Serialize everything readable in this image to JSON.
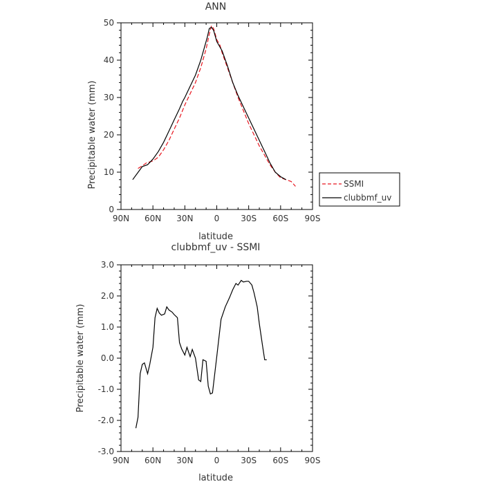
{
  "chart_data": [
    {
      "type": "line",
      "title": "ANN",
      "xlabel": "latitude",
      "ylabel": "Precipitable water (mm)",
      "xlim": [
        90,
        -90
      ],
      "ylim": [
        0,
        50
      ],
      "xticks": [
        90,
        60,
        30,
        0,
        -30,
        -60,
        -90
      ],
      "xtick_labels": [
        "90N",
        "60N",
        "30N",
        "0",
        "30S",
        "60S",
        "90S"
      ],
      "yticks": [
        0,
        10,
        20,
        30,
        40,
        50
      ],
      "ytick_labels": [
        "0",
        "10",
        "20",
        "30",
        "40",
        "50"
      ],
      "legend": {
        "placement": "right-outside",
        "entries": [
          "SSMI",
          "clubbmf_uv"
        ]
      },
      "series": [
        {
          "name": "SSMI",
          "color": "#e8141d",
          "dash": "dashed",
          "points": [
            [
              74,
              11
            ],
            [
              70,
              11.7
            ],
            [
              66,
              12.5
            ],
            [
              60,
              13
            ],
            [
              55,
              14
            ],
            [
              50,
              16
            ],
            [
              45,
              18.5
            ],
            [
              40,
              21.5
            ],
            [
              35,
              24.5
            ],
            [
              30,
              28
            ],
            [
              25,
              31
            ],
            [
              20,
              34
            ],
            [
              15,
              38
            ],
            [
              10,
              43
            ],
            [
              7,
              47
            ],
            [
              5,
              49.2
            ],
            [
              3,
              48.5
            ],
            [
              0,
              45.5
            ],
            [
              -3,
              44
            ],
            [
              -5,
              42
            ],
            [
              -10,
              38
            ],
            [
              -15,
              34
            ],
            [
              -20,
              30
            ],
            [
              -25,
              26.5
            ],
            [
              -30,
              23
            ],
            [
              -35,
              20
            ],
            [
              -40,
              17
            ],
            [
              -45,
              14.5
            ],
            [
              -50,
              12
            ],
            [
              -55,
              10
            ],
            [
              -60,
              8.5
            ],
            [
              -65,
              8
            ],
            [
              -70,
              7.5
            ],
            [
              -74,
              6.2
            ]
          ]
        },
        {
          "name": "clubbmf_uv",
          "color": "#000000",
          "dash": "solid",
          "points": [
            [
              79,
              8
            ],
            [
              70,
              11.5
            ],
            [
              65,
              12
            ],
            [
              60,
              13.5
            ],
            [
              55,
              15.5
            ],
            [
              50,
              18
            ],
            [
              45,
              21
            ],
            [
              40,
              24
            ],
            [
              35,
              27
            ],
            [
              32,
              29
            ],
            [
              30,
              30
            ],
            [
              25,
              33
            ],
            [
              20,
              36
            ],
            [
              15,
              40
            ],
            [
              12,
              43
            ],
            [
              9,
              46
            ],
            [
              7,
              48.5
            ],
            [
              5,
              48.8
            ],
            [
              3,
              48
            ],
            [
              0,
              45
            ],
            [
              -5,
              42.5
            ],
            [
              -10,
              38.5
            ],
            [
              -15,
              34
            ],
            [
              -20,
              30.5
            ],
            [
              -25,
              27.5
            ],
            [
              -30,
              24.5
            ],
            [
              -35,
              21.5
            ],
            [
              -40,
              18.5
            ],
            [
              -45,
              15.5
            ],
            [
              -50,
              12.5
            ],
            [
              -55,
              10
            ],
            [
              -60,
              8.8
            ],
            [
              -65,
              8
            ]
          ]
        }
      ]
    },
    {
      "type": "line",
      "title": "clubbmf_uv - SSMI",
      "xlabel": "latitude",
      "ylabel": "Precipitable water (mm)",
      "xlim": [
        90,
        -90
      ],
      "ylim": [
        -3,
        3
      ],
      "xticks": [
        90,
        60,
        30,
        0,
        -30,
        -60,
        -90
      ],
      "xtick_labels": [
        "90N",
        "60N",
        "30N",
        "0",
        "30S",
        "60S",
        "90S"
      ],
      "yticks": [
        -3,
        -2,
        -1,
        0,
        1,
        2,
        3
      ],
      "ytick_labels": [
        "-3.0",
        "-2.0",
        "-1.0",
        "0.0",
        "1.0",
        "2.0",
        "3.0"
      ],
      "series": [
        {
          "color": "#000000",
          "dash": "solid",
          "points": [
            [
              76,
              -2.25
            ],
            [
              74,
              -1.9
            ],
            [
              72,
              -0.5
            ],
            [
              70,
              -0.2
            ],
            [
              68,
              -0.15
            ],
            [
              65,
              -0.5
            ],
            [
              63,
              -0.2
            ],
            [
              60,
              0.35
            ],
            [
              58,
              1.3
            ],
            [
              56,
              1.6
            ],
            [
              54,
              1.45
            ],
            [
              52,
              1.38
            ],
            [
              49,
              1.42
            ],
            [
              47,
              1.65
            ],
            [
              45,
              1.55
            ],
            [
              42,
              1.48
            ],
            [
              40,
              1.4
            ],
            [
              37,
              1.3
            ],
            [
              35,
              0.5
            ],
            [
              33,
              0.3
            ],
            [
              30,
              0.1
            ],
            [
              28,
              0.35
            ],
            [
              25,
              0.05
            ],
            [
              23,
              0.28
            ],
            [
              20,
              0
            ],
            [
              17,
              -0.7
            ],
            [
              15,
              -0.75
            ],
            [
              13,
              -0.05
            ],
            [
              10,
              -0.1
            ],
            [
              8,
              -0.9
            ],
            [
              6,
              -1.15
            ],
            [
              4,
              -1.12
            ],
            [
              0,
              0.05
            ],
            [
              -4,
              1.25
            ],
            [
              -8,
              1.65
            ],
            [
              -12,
              1.95
            ],
            [
              -15,
              2.2
            ],
            [
              -18,
              2.4
            ],
            [
              -20,
              2.35
            ],
            [
              -23,
              2.5
            ],
            [
              -25,
              2.45
            ],
            [
              -28,
              2.47
            ],
            [
              -30,
              2.47
            ],
            [
              -33,
              2.35
            ],
            [
              -35,
              2.1
            ],
            [
              -38,
              1.65
            ],
            [
              -40,
              1.1
            ],
            [
              -43,
              0.4
            ],
            [
              -45,
              -0.05
            ],
            [
              -47,
              -0.05
            ]
          ]
        }
      ]
    }
  ]
}
